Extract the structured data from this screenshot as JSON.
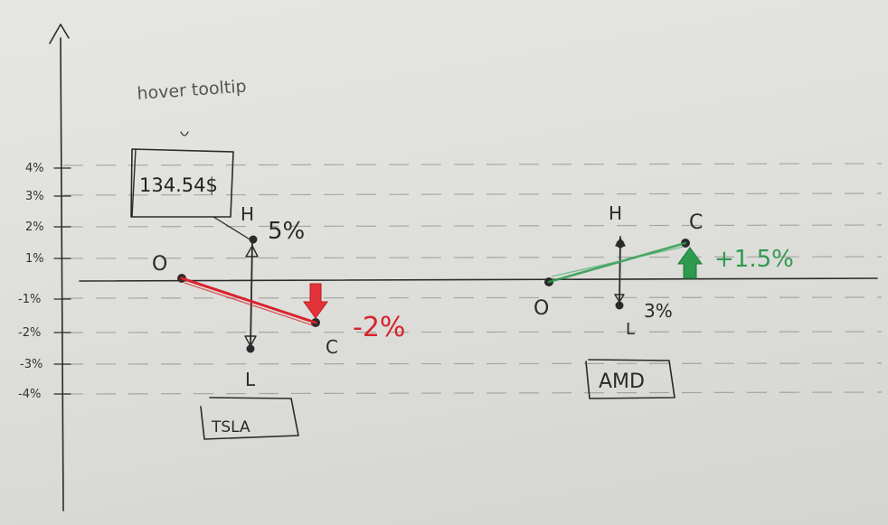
{
  "axis": {
    "ticks": [
      "4%",
      "3%",
      "2%",
      "1%",
      "-1%",
      "-2%",
      "-3%",
      "-4%"
    ]
  },
  "annotation": {
    "text": "hover tooltip"
  },
  "tooltip": {
    "value": "134.54$"
  },
  "stocks": [
    {
      "symbol": "TSLA",
      "labels": {
        "open": "O",
        "high": "H",
        "low": "L",
        "close": "C"
      },
      "high_pct": "5%",
      "change": "-2%",
      "color": "#d8232a"
    },
    {
      "symbol": "AMD",
      "labels": {
        "open": "O",
        "high": "H",
        "low": "L",
        "close": "C"
      },
      "low_pct": "3%",
      "change": "+1.5%",
      "color": "#2e9a4e"
    }
  ]
}
